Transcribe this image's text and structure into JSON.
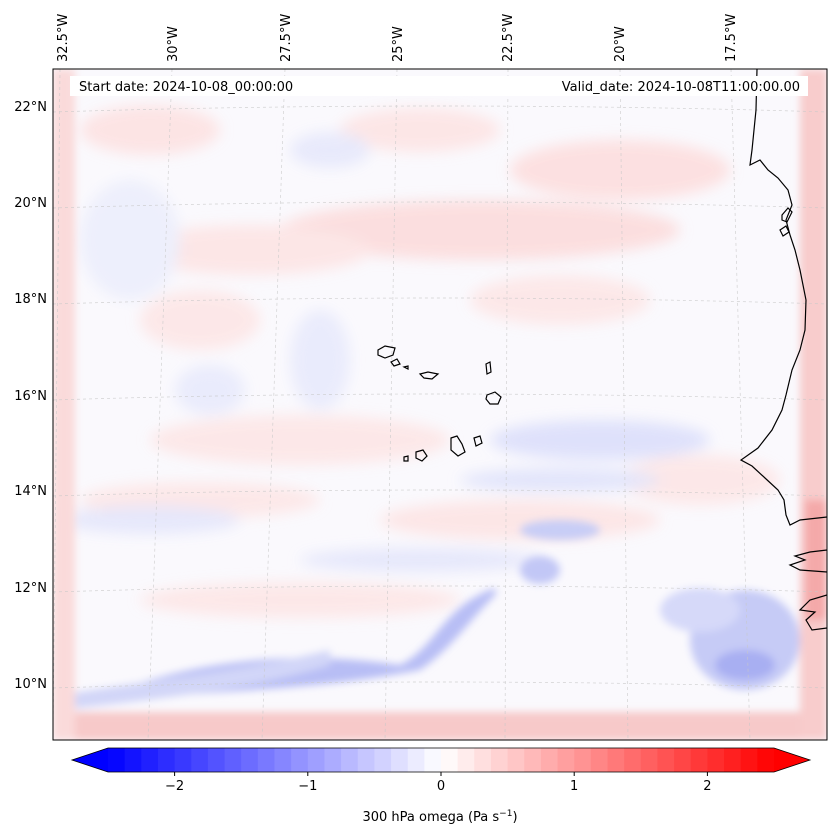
{
  "map": {
    "start_date": "Start date: 2024-10-08_00:00:00",
    "valid_date": "Valid_date: 2024-10-08T11:00:00.00",
    "lon_labels": [
      "32.5°W",
      "30°W",
      "27.5°W",
      "25°W",
      "22.5°W",
      "20°W",
      "17.5°W"
    ],
    "lat_labels": [
      "22°N",
      "20°N",
      "18°N",
      "16°N",
      "14°N",
      "12°N",
      "10°N"
    ],
    "variable": "300 hPa omega",
    "units": "Pa s",
    "units_exponent": "−1"
  },
  "colorbar": {
    "min": -2.5,
    "max": 2.5,
    "ticks": [
      "−2",
      "−1",
      "0",
      "1",
      "2"
    ],
    "tick_values": [
      -2,
      -1,
      0,
      1,
      2
    ],
    "low_color": "#0000ff",
    "mid_color": "#ffffff",
    "high_color": "#ff0000",
    "label": "300 hPa omega (Pa s",
    "label_end": ")"
  }
}
